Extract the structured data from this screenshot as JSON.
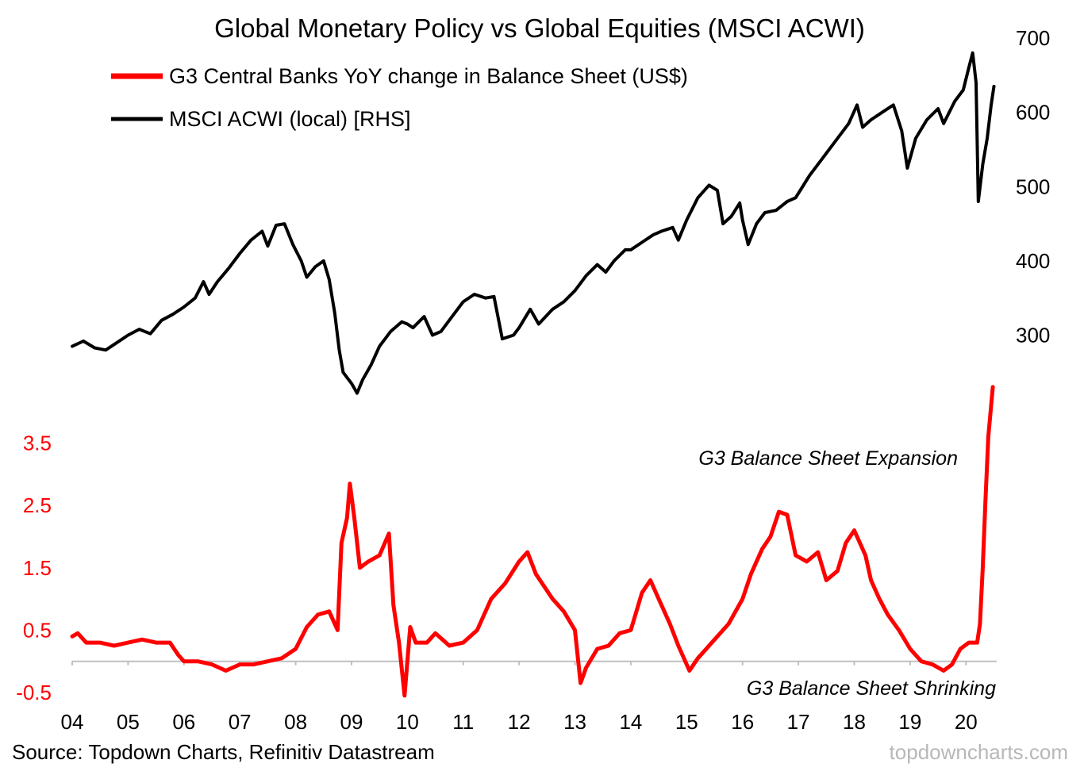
{
  "chart_data": {
    "type": "line",
    "title": "Global Monetary Policy vs Global Equities (MSCI ACWI)",
    "series": [
      {
        "name": "G3 Central Banks YoY change in Balance Sheet (US$)",
        "axis": "left",
        "color": "#ff0000",
        "points": [
          [
            2004.0,
            0.4
          ],
          [
            2004.1,
            0.45
          ],
          [
            2004.25,
            0.3
          ],
          [
            2004.5,
            0.3
          ],
          [
            2004.75,
            0.25
          ],
          [
            2005.0,
            0.3
          ],
          [
            2005.25,
            0.35
          ],
          [
            2005.5,
            0.3
          ],
          [
            2005.75,
            0.3
          ],
          [
            2005.9,
            0.1
          ],
          [
            2006.0,
            0.0
          ],
          [
            2006.25,
            0.0
          ],
          [
            2006.5,
            -0.05
          ],
          [
            2006.75,
            -0.15
          ],
          [
            2007.0,
            -0.05
          ],
          [
            2007.25,
            -0.05
          ],
          [
            2007.5,
            0.0
          ],
          [
            2007.75,
            0.05
          ],
          [
            2008.0,
            0.2
          ],
          [
            2008.2,
            0.55
          ],
          [
            2008.4,
            0.75
          ],
          [
            2008.6,
            0.8
          ],
          [
            2008.75,
            0.5
          ],
          [
            2008.82,
            1.9
          ],
          [
            2008.92,
            2.3
          ],
          [
            2008.97,
            2.85
          ],
          [
            2009.05,
            2.3
          ],
          [
            2009.15,
            1.5
          ],
          [
            2009.3,
            1.6
          ],
          [
            2009.5,
            1.7
          ],
          [
            2009.67,
            2.05
          ],
          [
            2009.75,
            0.9
          ],
          [
            2009.85,
            0.3
          ],
          [
            2009.95,
            -0.55
          ],
          [
            2010.05,
            0.55
          ],
          [
            2010.15,
            0.3
          ],
          [
            2010.35,
            0.3
          ],
          [
            2010.5,
            0.45
          ],
          [
            2010.75,
            0.25
          ],
          [
            2011.0,
            0.3
          ],
          [
            2011.25,
            0.5
          ],
          [
            2011.5,
            1.0
          ],
          [
            2011.75,
            1.25
          ],
          [
            2012.0,
            1.6
          ],
          [
            2012.15,
            1.75
          ],
          [
            2012.3,
            1.4
          ],
          [
            2012.6,
            1.0
          ],
          [
            2012.8,
            0.8
          ],
          [
            2013.0,
            0.5
          ],
          [
            2013.1,
            -0.35
          ],
          [
            2013.2,
            -0.1
          ],
          [
            2013.4,
            0.2
          ],
          [
            2013.6,
            0.25
          ],
          [
            2013.8,
            0.45
          ],
          [
            2014.0,
            0.5
          ],
          [
            2014.2,
            1.1
          ],
          [
            2014.35,
            1.3
          ],
          [
            2014.5,
            1.0
          ],
          [
            2014.7,
            0.6
          ],
          [
            2014.85,
            0.25
          ],
          [
            2015.05,
            -0.15
          ],
          [
            2015.2,
            0.05
          ],
          [
            2015.5,
            0.35
          ],
          [
            2015.75,
            0.6
          ],
          [
            2016.0,
            1.0
          ],
          [
            2016.15,
            1.4
          ],
          [
            2016.35,
            1.8
          ],
          [
            2016.5,
            2.0
          ],
          [
            2016.65,
            2.4
          ],
          [
            2016.8,
            2.35
          ],
          [
            2016.95,
            1.7
          ],
          [
            2017.15,
            1.6
          ],
          [
            2017.35,
            1.75
          ],
          [
            2017.5,
            1.3
          ],
          [
            2017.7,
            1.45
          ],
          [
            2017.85,
            1.9
          ],
          [
            2018.0,
            2.1
          ],
          [
            2018.2,
            1.7
          ],
          [
            2018.3,
            1.3
          ],
          [
            2018.45,
            1.0
          ],
          [
            2018.6,
            0.75
          ],
          [
            2018.8,
            0.5
          ],
          [
            2019.0,
            0.2
          ],
          [
            2019.2,
            0.0
          ],
          [
            2019.4,
            -0.05
          ],
          [
            2019.6,
            -0.15
          ],
          [
            2019.75,
            -0.05
          ],
          [
            2019.9,
            0.2
          ],
          [
            2020.05,
            0.3
          ],
          [
            2020.2,
            0.3
          ],
          [
            2020.25,
            0.6
          ],
          [
            2020.3,
            1.5
          ],
          [
            2020.35,
            2.6
          ],
          [
            2020.4,
            3.6
          ],
          [
            2020.48,
            4.4
          ]
        ]
      },
      {
        "name": "MSCI ACWI (local) [RHS]",
        "axis": "right",
        "color": "#000000",
        "points": [
          [
            2004.0,
            285
          ],
          [
            2004.2,
            292
          ],
          [
            2004.4,
            283
          ],
          [
            2004.6,
            280
          ],
          [
            2004.8,
            290
          ],
          [
            2005.0,
            300
          ],
          [
            2005.2,
            308
          ],
          [
            2005.4,
            302
          ],
          [
            2005.6,
            320
          ],
          [
            2005.8,
            328
          ],
          [
            2006.0,
            338
          ],
          [
            2006.2,
            350
          ],
          [
            2006.35,
            372
          ],
          [
            2006.45,
            355
          ],
          [
            2006.6,
            372
          ],
          [
            2006.8,
            390
          ],
          [
            2007.0,
            410
          ],
          [
            2007.2,
            428
          ],
          [
            2007.4,
            440
          ],
          [
            2007.5,
            420
          ],
          [
            2007.65,
            448
          ],
          [
            2007.8,
            450
          ],
          [
            2007.95,
            422
          ],
          [
            2008.1,
            400
          ],
          [
            2008.2,
            378
          ],
          [
            2008.35,
            392
          ],
          [
            2008.5,
            400
          ],
          [
            2008.6,
            375
          ],
          [
            2008.7,
            330
          ],
          [
            2008.78,
            280
          ],
          [
            2008.85,
            250
          ],
          [
            2009.0,
            235
          ],
          [
            2009.1,
            222
          ],
          [
            2009.2,
            240
          ],
          [
            2009.35,
            260
          ],
          [
            2009.5,
            285
          ],
          [
            2009.7,
            305
          ],
          [
            2009.9,
            318
          ],
          [
            2010.0,
            315
          ],
          [
            2010.1,
            310
          ],
          [
            2010.3,
            325
          ],
          [
            2010.45,
            300
          ],
          [
            2010.6,
            305
          ],
          [
            2010.8,
            325
          ],
          [
            2011.0,
            345
          ],
          [
            2011.2,
            355
          ],
          [
            2011.4,
            350
          ],
          [
            2011.55,
            352
          ],
          [
            2011.7,
            295
          ],
          [
            2011.9,
            300
          ],
          [
            2012.0,
            310
          ],
          [
            2012.2,
            335
          ],
          [
            2012.35,
            315
          ],
          [
            2012.6,
            335
          ],
          [
            2012.8,
            345
          ],
          [
            2013.0,
            360
          ],
          [
            2013.2,
            380
          ],
          [
            2013.4,
            395
          ],
          [
            2013.55,
            385
          ],
          [
            2013.7,
            400
          ],
          [
            2013.9,
            415
          ],
          [
            2014.0,
            415
          ],
          [
            2014.2,
            425
          ],
          [
            2014.4,
            435
          ],
          [
            2014.55,
            440
          ],
          [
            2014.75,
            445
          ],
          [
            2014.85,
            428
          ],
          [
            2015.0,
            455
          ],
          [
            2015.2,
            485
          ],
          [
            2015.4,
            502
          ],
          [
            2015.55,
            495
          ],
          [
            2015.65,
            450
          ],
          [
            2015.8,
            460
          ],
          [
            2015.95,
            478
          ],
          [
            2016.0,
            455
          ],
          [
            2016.1,
            422
          ],
          [
            2016.25,
            450
          ],
          [
            2016.4,
            465
          ],
          [
            2016.6,
            468
          ],
          [
            2016.8,
            480
          ],
          [
            2016.95,
            485
          ],
          [
            2017.2,
            515
          ],
          [
            2017.45,
            540
          ],
          [
            2017.7,
            565
          ],
          [
            2017.9,
            585
          ],
          [
            2018.05,
            610
          ],
          [
            2018.15,
            580
          ],
          [
            2018.3,
            590
          ],
          [
            2018.5,
            600
          ],
          [
            2018.7,
            610
          ],
          [
            2018.85,
            575
          ],
          [
            2018.95,
            525
          ],
          [
            2019.1,
            565
          ],
          [
            2019.3,
            590
          ],
          [
            2019.5,
            605
          ],
          [
            2019.6,
            585
          ],
          [
            2019.8,
            615
          ],
          [
            2019.95,
            630
          ],
          [
            2020.05,
            660
          ],
          [
            2020.12,
            680
          ],
          [
            2020.18,
            640
          ],
          [
            2020.22,
            480
          ],
          [
            2020.3,
            530
          ],
          [
            2020.38,
            565
          ],
          [
            2020.45,
            610
          ],
          [
            2020.5,
            635
          ]
        ]
      }
    ],
    "x": {
      "range": [
        2004,
        2020.55
      ],
      "tick_values": [
        2004,
        2005,
        2006,
        2007,
        2008,
        2009,
        2010,
        2011,
        2012,
        2013,
        2014,
        2015,
        2016,
        2017,
        2018,
        2019,
        2020
      ],
      "tick_labels": [
        "04",
        "05",
        "06",
        "07",
        "08",
        "09",
        "10",
        "11",
        "12",
        "13",
        "14",
        "15",
        "16",
        "17",
        "18",
        "19",
        "20"
      ]
    },
    "y_left": {
      "range": [
        -0.5,
        4.5
      ],
      "tick_values": [
        -0.5,
        0.5,
        1.5,
        2.5,
        3.5
      ],
      "tick_labels": [
        "-0.5",
        "0.5",
        "1.5",
        "2.5",
        "3.5"
      ],
      "baseline": 0
    },
    "y_right": {
      "range": [
        150,
        700
      ],
      "tick_values": [
        300,
        400,
        500,
        600,
        700
      ],
      "tick_labels": [
        "300",
        "400",
        "500",
        "600",
        "700"
      ]
    },
    "legend_placement": "top-left",
    "grid": false,
    "annotations": [
      "G3 Balance Sheet Expansion",
      "G3 Balance Sheet Shrinking"
    ]
  },
  "footer": {
    "source": "Source: Topdown Charts, Refinitiv Datastream",
    "watermark": "topdowncharts.com"
  }
}
